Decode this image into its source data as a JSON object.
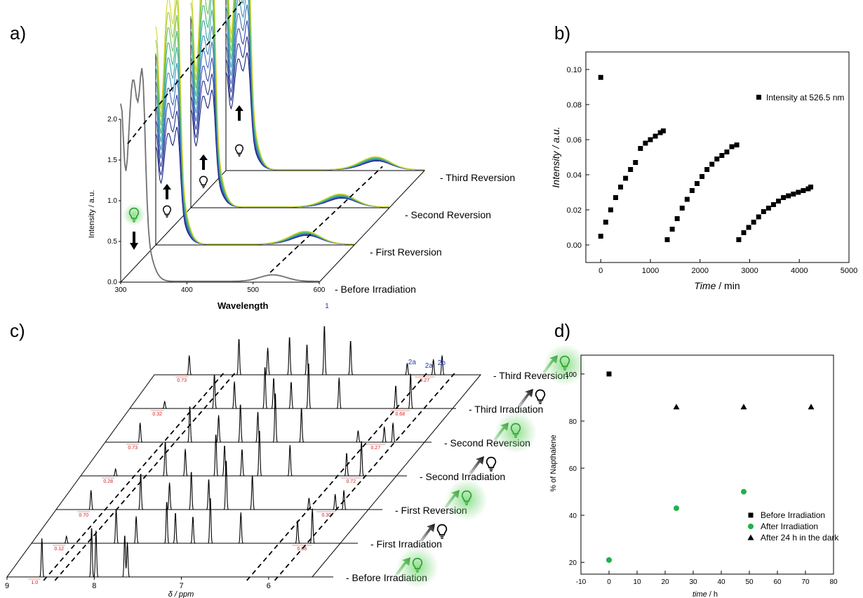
{
  "panel_labels": {
    "a": "a)",
    "b": "b)",
    "c": "c)",
    "d": "d)"
  },
  "chart_data": [
    {
      "id": "a",
      "type": "line",
      "xlabel": "Wavelength",
      "ylabel": "Intensity / a.u.",
      "xlim": [
        300,
        600
      ],
      "ylim": [
        0,
        2.0
      ],
      "x_ticks": [
        "300",
        "400",
        "500",
        "600"
      ],
      "y_ticks": [
        "0.0",
        "0.5",
        "1.0",
        "1.5",
        "2.0"
      ],
      "layers": [
        "- Before Irradiation",
        "- First Reversion",
        "- Second Reversion",
        "- Third Reversion"
      ]
    },
    {
      "id": "b",
      "type": "scatter",
      "xlabel_main": "Time",
      "xlabel_unit": " / min",
      "ylabel": "Intensity / a.u.",
      "xlim": [
        -300,
        5000
      ],
      "ylim": [
        -0.01,
        0.11
      ],
      "x_ticks": [
        0,
        1000,
        2000,
        3000,
        4000,
        5000
      ],
      "y_ticks": [
        "0.00",
        "0.02",
        "0.04",
        "0.06",
        "0.08",
        "0.10"
      ],
      "legend": "Intensity at 526.5 nm",
      "series": [
        {
          "x": [
            0
          ],
          "y": [
            0.0955
          ]
        },
        {
          "x": [
            0,
            100,
            200,
            300,
            400,
            500,
            600,
            700,
            800,
            900,
            1000,
            1100,
            1200,
            1260
          ],
          "y": [
            0.005,
            0.013,
            0.02,
            0.027,
            0.033,
            0.038,
            0.043,
            0.047,
            0.055,
            0.058,
            0.06,
            0.062,
            0.064,
            0.065
          ]
        },
        {
          "x": [
            1340,
            1440,
            1540,
            1640,
            1740,
            1840,
            1940,
            2040,
            2140,
            2240,
            2340,
            2440,
            2540,
            2640,
            2740
          ],
          "y": [
            0.003,
            0.009,
            0.015,
            0.021,
            0.026,
            0.031,
            0.035,
            0.039,
            0.043,
            0.046,
            0.049,
            0.051,
            0.053,
            0.056,
            0.057
          ]
        },
        {
          "x": [
            2780,
            2880,
            2980,
            3080,
            3180,
            3280,
            3380,
            3480,
            3580,
            3680,
            3780,
            3880,
            3980,
            4080,
            4180,
            4230
          ],
          "y": [
            0.003,
            0.007,
            0.01,
            0.013,
            0.016,
            0.019,
            0.021,
            0.023,
            0.025,
            0.027,
            0.028,
            0.029,
            0.03,
            0.031,
            0.032,
            0.033
          ]
        }
      ]
    },
    {
      "id": "c",
      "type": "line",
      "xlabel": "δ / ppm",
      "x_ticks": [
        "9",
        "8",
        "7",
        "6"
      ],
      "xlim": [
        9,
        5.5
      ],
      "layers": [
        "- Before Irradiation",
        "- First Irradiation",
        "- First Reversion",
        "- Second Irradiation",
        "- Second Reversion",
        "- Third Irradiation",
        "- Third Reversion"
      ],
      "integrals_left": [
        "1.0",
        "0.12",
        "0.70",
        "0.28",
        "0.73",
        "0.32",
        "0.73"
      ],
      "integrals_right": [
        "0.88",
        "0.30",
        "0.72",
        "0.27",
        "0.68",
        "0.27"
      ],
      "peak_labels": [
        "1",
        "2a",
        "2a",
        "2b"
      ]
    },
    {
      "id": "d",
      "type": "scatter",
      "xlabel_main": "time",
      "xlabel_unit": " / h",
      "ylabel": "% of Napthalene",
      "xlim": [
        -10,
        80
      ],
      "ylim": [
        15,
        108
      ],
      "x_ticks": [
        -10,
        0,
        10,
        20,
        30,
        40,
        50,
        60,
        70,
        80
      ],
      "y_ticks": [
        20,
        40,
        60,
        80,
        100
      ],
      "series": [
        {
          "name": "Before Irradiation",
          "marker": "square",
          "color": "#000000",
          "x": [
            0
          ],
          "y": [
            100
          ]
        },
        {
          "name": "After Irradiation",
          "marker": "circle",
          "color": "#1fb24a",
          "x": [
            0,
            24,
            48
          ],
          "y": [
            21,
            43,
            50
          ]
        },
        {
          "name": "After 24 h in the dark",
          "marker": "triangle",
          "color": "#000000",
          "x": [
            24,
            48,
            72
          ],
          "y": [
            86,
            86,
            86
          ]
        }
      ]
    }
  ]
}
